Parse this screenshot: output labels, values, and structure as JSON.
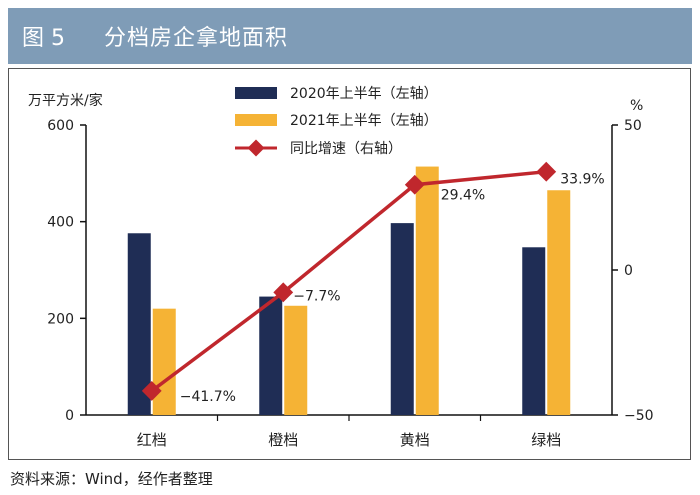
{
  "header": {
    "figure_label": "图 5",
    "title": "分档房企拿地面积"
  },
  "source": "资料来源：Wind，经作者整理",
  "colors": {
    "series_2020": "#1f2d55",
    "series_2021": "#f5b335",
    "growth_line": "#c0272d",
    "title_bg": "#7f9cb7"
  },
  "chart_data": {
    "type": "bar",
    "title": "分档房企拿地面积",
    "categories": [
      "红档",
      "橙档",
      "黄档",
      "绿档"
    ],
    "series": [
      {
        "name": "2020年上半年（左轴）",
        "axis": "left",
        "type": "bar",
        "values": [
          376,
          245,
          397,
          347
        ]
      },
      {
        "name": "2021年上半年（左轴）",
        "axis": "left",
        "type": "bar",
        "values": [
          220,
          226,
          514,
          465
        ]
      },
      {
        "name": "同比增速（右轴）",
        "axis": "right",
        "type": "line",
        "values": [
          -41.7,
          -7.7,
          29.4,
          33.9
        ],
        "labels": [
          "−41.7%",
          "−7.7%",
          "29.4%",
          "33.9%"
        ]
      }
    ],
    "ylabel_left": "万平方米/家",
    "ylabel_right": "%",
    "ylim_left": [
      0,
      600
    ],
    "ylim_right": [
      -50,
      50
    ],
    "yticks_left": [
      "0",
      "200",
      "400",
      "600"
    ],
    "yticks_right": [
      "−50",
      "0",
      "50"
    ],
    "legend_position": "top-center"
  }
}
